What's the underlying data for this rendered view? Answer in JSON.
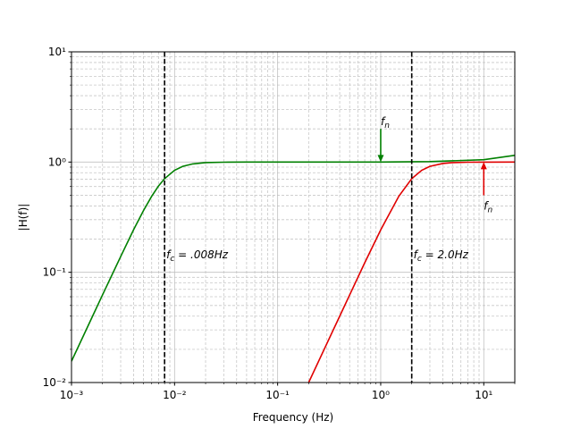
{
  "chart_data": {
    "type": "line",
    "xlabel": "Frequency (Hz)",
    "ylabel": "|H(f)|",
    "xscale": "log",
    "yscale": "log",
    "grid": true,
    "xlim": [
      0.001,
      20
    ],
    "ylim": [
      0.01,
      10
    ],
    "xticks": [
      {
        "value": 0.001,
        "label": "10⁻³"
      },
      {
        "value": 0.01,
        "label": "10⁻²"
      },
      {
        "value": 0.1,
        "label": "10⁻¹"
      },
      {
        "value": 1,
        "label": "10⁰"
      },
      {
        "value": 10,
        "label": "10¹"
      }
    ],
    "yticks": [
      {
        "value": 0.01,
        "label": "10⁻²"
      },
      {
        "value": 0.1,
        "label": "10⁻¹"
      },
      {
        "value": 1,
        "label": "10⁰"
      },
      {
        "value": 10,
        "label": "10¹"
      }
    ],
    "xminorticks": [
      0.002,
      0.003,
      0.004,
      0.005,
      0.006,
      0.007,
      0.008,
      0.009,
      0.02,
      0.03,
      0.04,
      0.05,
      0.06,
      0.07,
      0.08,
      0.09,
      0.2,
      0.3,
      0.4,
      0.5,
      0.6,
      0.7,
      0.8,
      0.9,
      2,
      3,
      4,
      5,
      6,
      7,
      8,
      9,
      20
    ],
    "yminorticks": [
      0.02,
      0.03,
      0.04,
      0.05,
      0.06,
      0.07,
      0.08,
      0.09,
      0.2,
      0.3,
      0.4,
      0.5,
      0.6,
      0.7,
      0.8,
      0.9,
      2,
      3,
      4,
      5,
      6,
      7,
      8,
      9
    ],
    "series": [
      {
        "color": "#008000",
        "x": [
          0.001,
          0.0015,
          0.002,
          0.003,
          0.004,
          0.005,
          0.006,
          0.007,
          0.008,
          0.01,
          0.012,
          0.015,
          0.02,
          0.03,
          0.05,
          0.1,
          1,
          3,
          10,
          20
        ],
        "values": [
          0.0156,
          0.0351,
          0.0624,
          0.139,
          0.243,
          0.364,
          0.49,
          0.608,
          0.707,
          0.842,
          0.914,
          0.962,
          0.988,
          0.997,
          1.0,
          1.0,
          1.0,
          1.01,
          1.05,
          1.15
        ]
      },
      {
        "color": "#e00000",
        "x": [
          0.2,
          0.3,
          0.5,
          0.7,
          1,
          1.5,
          2,
          2.5,
          3,
          4,
          5,
          7,
          10,
          20
        ],
        "values": [
          0.01,
          0.0225,
          0.0624,
          0.122,
          0.2425,
          0.49,
          0.707,
          0.842,
          0.914,
          0.97,
          0.988,
          0.997,
          0.999,
          1.0
        ]
      }
    ],
    "vlines": [
      {
        "x": 0.008,
        "label": "f",
        "subscript": "c",
        "text": " = .008Hz"
      },
      {
        "x": 2.0,
        "label": "f",
        "subscript": "c",
        "text": " = 2.0Hz"
      }
    ],
    "arrows": [
      {
        "x": 1,
        "y_from": 2.0,
        "y_to": 1.0,
        "color": "#008000",
        "label": "f",
        "subscript": "n",
        "label_pos": "above"
      },
      {
        "x": 10,
        "y_from": 0.5,
        "y_to": 1.0,
        "color": "#e00000",
        "label": "f",
        "subscript": "n",
        "label_pos": "below"
      }
    ]
  }
}
